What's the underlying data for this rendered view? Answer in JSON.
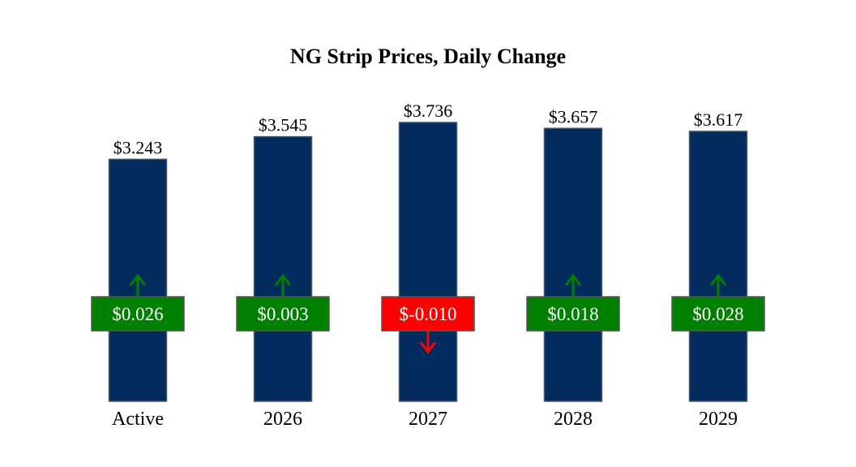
{
  "chart_data": {
    "type": "bar",
    "title": "NG Strip Prices, Daily Change",
    "xlabel": "",
    "ylabel": "",
    "ylim": [
      0,
      3.736
    ],
    "grid": false,
    "legend": "none",
    "categories": [
      "Active",
      "2026",
      "2027",
      "2028",
      "2029"
    ],
    "values": [
      3.243,
      3.545,
      3.736,
      3.657,
      3.617
    ],
    "value_labels": [
      "$3.243",
      "$3.545",
      "$3.736",
      "$3.657",
      "$3.617"
    ],
    "changes": [
      0.026,
      0.003,
      -0.01,
      0.018,
      0.028
    ],
    "change_labels": [
      "$0.026",
      "$0.003",
      "$-0.010",
      "$0.018",
      "$0.028"
    ]
  },
  "colors": {
    "bar": "#002b5c",
    "positive": "#008000",
    "negative": "#ff0000",
    "text": "#000000",
    "badge_text": "#ffffff"
  }
}
